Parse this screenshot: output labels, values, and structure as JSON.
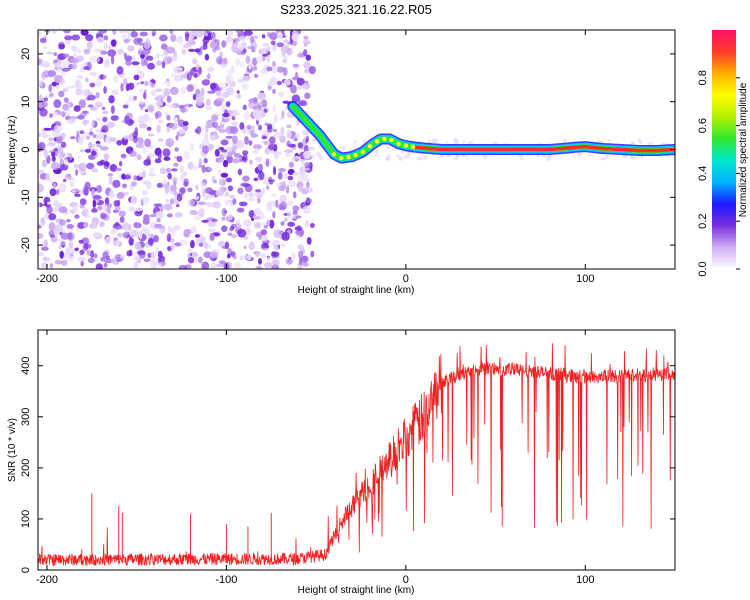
{
  "title": "S233.2025.321.16.22.R05",
  "chart_data": [
    {
      "type": "heatmap",
      "xlabel": "Height of straight line (km)",
      "ylabel": "Frequency (Hz)",
      "xlim": [
        -205,
        150
      ],
      "ylim": [
        -25,
        25
      ],
      "xticks": [
        -200,
        -100,
        0,
        100
      ],
      "yticks": [
        -20,
        -10,
        0,
        10,
        20
      ],
      "noise_region_x": [
        -205,
        -52
      ],
      "ridge": {
        "x": [
          -63,
          -58,
          -53,
          -48,
          -44,
          -40,
          -36,
          -30,
          -24,
          -19,
          -14,
          -9,
          -4,
          0,
          5,
          10,
          20,
          40,
          60,
          80,
          90,
          95,
          100,
          105,
          110,
          120,
          130,
          140,
          150
        ],
        "freq": [
          9,
          7,
          5,
          3,
          1,
          -1,
          -1.8,
          -1.5,
          -0.5,
          1,
          2.2,
          2.2,
          1.2,
          0.8,
          0.5,
          0.3,
          0,
          0,
          0,
          0,
          0.3,
          0.5,
          0.6,
          0.4,
          0.2,
          0,
          -0.2,
          -0.2,
          0
        ]
      },
      "colorbar": {
        "label": "Normalized spectral amplitude",
        "range": [
          0,
          1
        ],
        "ticks": [
          0,
          0.2,
          0.4,
          0.6,
          0.8
        ],
        "tick_labels": [
          "0.0",
          "0.2",
          "0.4",
          "0.6",
          "0.8"
        ],
        "colors": [
          "#ffffff",
          "#cfaef5",
          "#7a2fe0",
          "#1a1aff",
          "#00b4ff",
          "#00e8d0",
          "#2ee82e",
          "#b4f000",
          "#ffff00",
          "#ffb000",
          "#ff3a2a",
          "#ff1464"
        ]
      }
    },
    {
      "type": "line",
      "xlabel": "Height of straight line (km)",
      "ylabel": "SNR (10 * v/v)",
      "xlim": [
        -205,
        150
      ],
      "ylim": [
        0,
        470
      ],
      "xticks": [
        -200,
        -100,
        0,
        100
      ],
      "yticks": [
        0,
        100,
        200,
        300,
        400
      ],
      "color": "#ee2020",
      "envelope": {
        "x": [
          -205,
          -60,
          -45,
          -35,
          -20,
          -10,
          0,
          10,
          20,
          40,
          60,
          80,
          100,
          120,
          150
        ],
        "snr": [
          20,
          22,
          30,
          100,
          170,
          210,
          260,
          300,
          370,
          395,
          392,
          385,
          378,
          380,
          385
        ]
      },
      "spikes": [
        {
          "x": -175,
          "snr": 150
        },
        {
          "x": -160,
          "snr": 125
        },
        {
          "x": -158,
          "snr": 112
        },
        {
          "x": -120,
          "snr": 110
        },
        {
          "x": -100,
          "snr": 90
        },
        {
          "x": -88,
          "snr": 85
        },
        {
          "x": -75,
          "snr": 112
        }
      ]
    }
  ]
}
